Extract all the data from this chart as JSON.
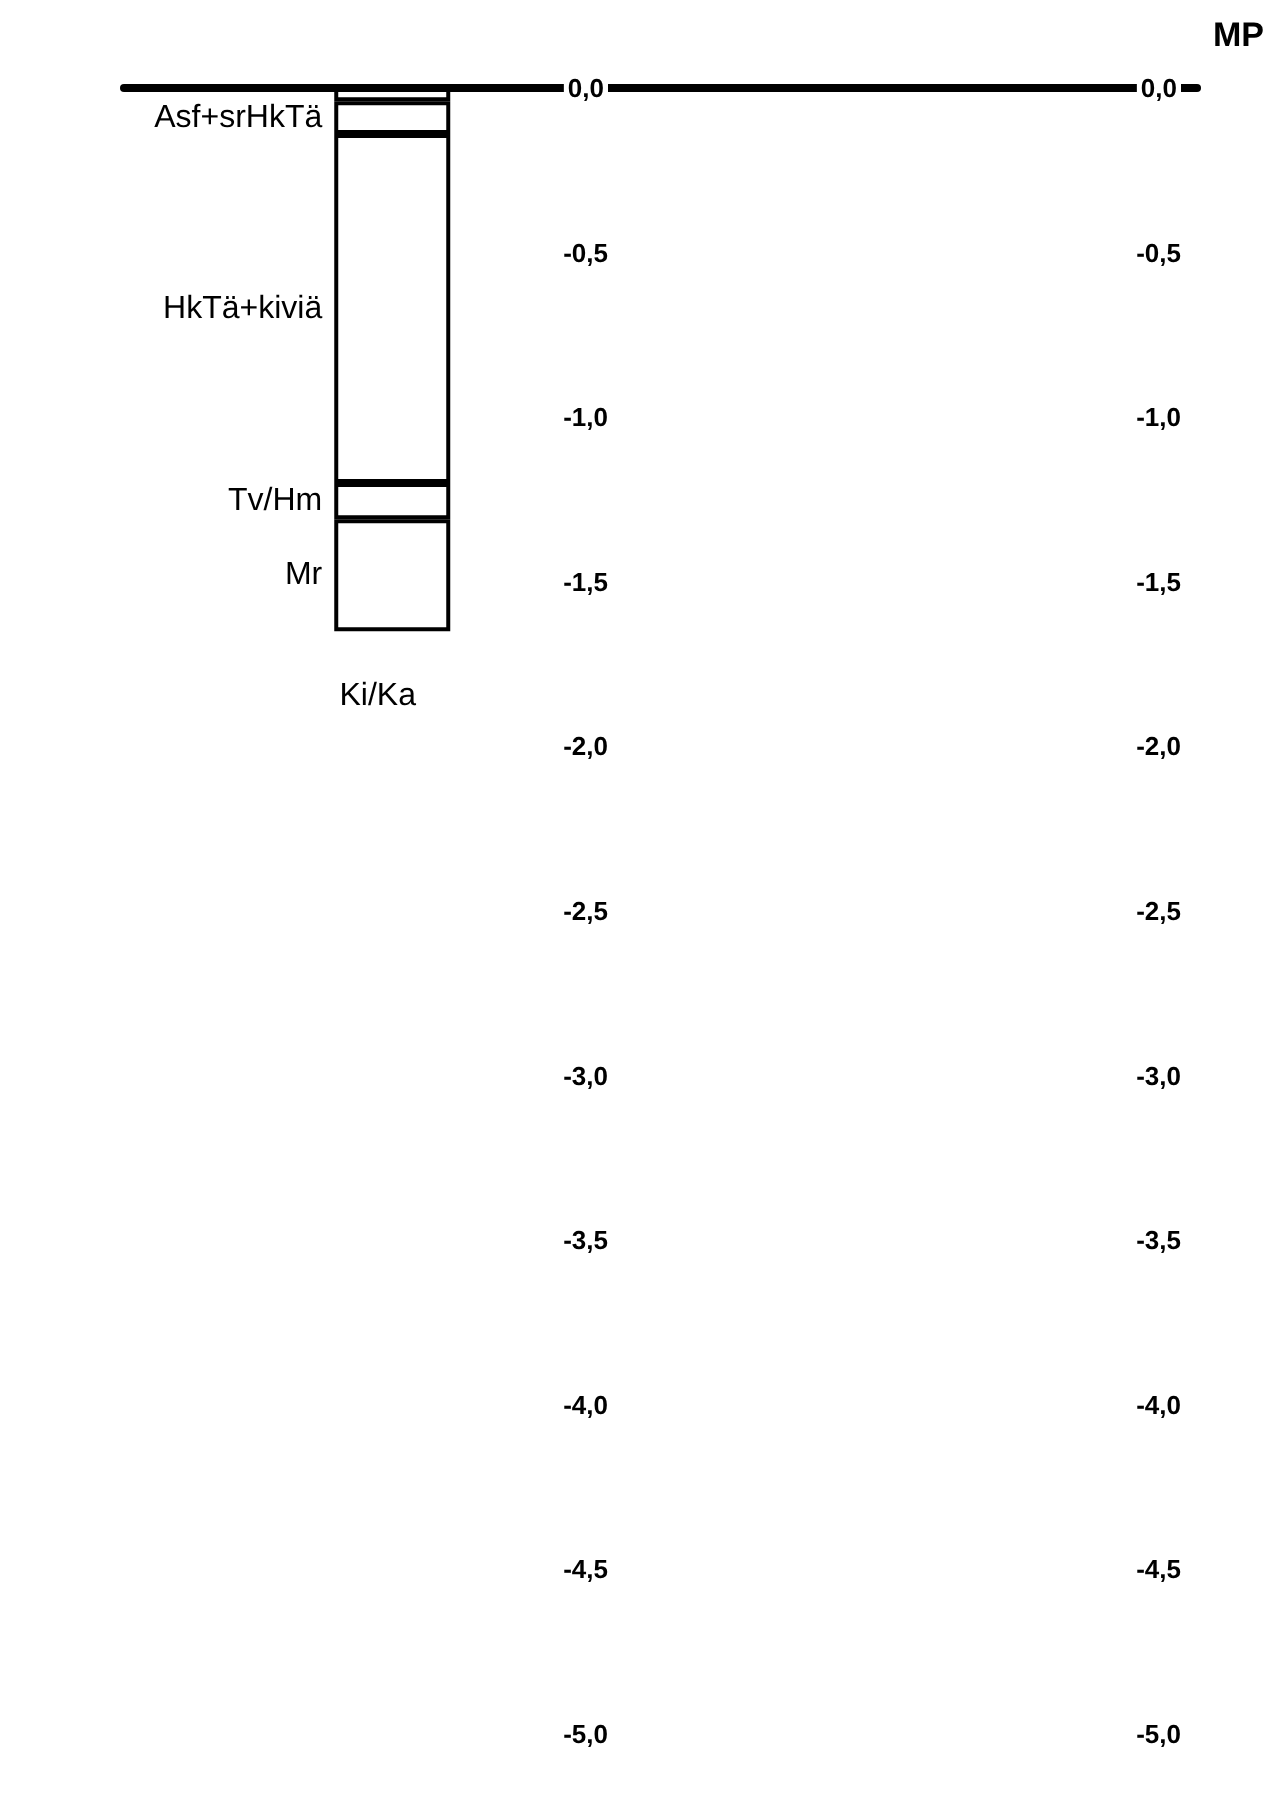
{
  "chart_data": {
    "type": "bar",
    "stacked": true,
    "categories": [
      null,
      null,
      null,
      null,
      null,
      null
    ],
    "series": [
      {
        "color": "#ffffff",
        "values": [
          null,
          -0.04,
          null,
          null,
          null,
          null
        ]
      },
      {
        "name": "Asf+srHkTä",
        "color": "#ffffff",
        "values": [
          null,
          -0.1,
          null,
          null,
          null,
          null
        ]
      },
      {
        "name": "HkTä+kiviä",
        "color": "#ffffff",
        "values": [
          null,
          -1.06,
          null,
          null,
          null,
          null
        ]
      },
      {
        "name": "Tv/Hm",
        "color": "#ffffff",
        "values": [
          null,
          -0.11,
          null,
          null,
          null,
          null
        ]
      },
      {
        "name": "Mr",
        "color": "#ffffff",
        "values": [
          null,
          -0.34,
          null,
          null,
          null,
          null
        ]
      }
    ],
    "ylim": [
      -5,
      0
    ],
    "yticks": [
      {
        "value": 0,
        "label": "0,0"
      },
      {
        "value": -0.5,
        "label": "-0,5"
      },
      {
        "value": -1,
        "label": "-1,0"
      },
      {
        "value": -1.5,
        "label": "-1,5"
      },
      {
        "value": -2,
        "label": "-2,0"
      },
      {
        "value": -2.5,
        "label": "-2,5"
      },
      {
        "value": -3,
        "label": "-3,0"
      },
      {
        "value": -3.5,
        "label": "-3,5"
      },
      {
        "value": -4,
        "label": "-4,0"
      },
      {
        "value": -4.5,
        "label": "-4,5"
      },
      {
        "value": -5,
        "label": "-5,0"
      }
    ],
    "y2lim": [
      -5,
      0
    ],
    "y2ticks": [
      {
        "value": 0,
        "label": "0,0"
      },
      {
        "value": -0.5,
        "label": "-0,5"
      },
      {
        "value": -1,
        "label": "-1,0"
      },
      {
        "value": -1.5,
        "label": "-1,5"
      },
      {
        "value": -2,
        "label": "-2,0"
      },
      {
        "value": -2.5,
        "label": "-2,5"
      },
      {
        "value": -3,
        "label": "-3,0"
      },
      {
        "value": -3.5,
        "label": "-3,5"
      },
      {
        "value": -4,
        "label": "-4,0"
      },
      {
        "value": -4.5,
        "label": "-4,5"
      },
      {
        "value": -5,
        "label": "-5,0"
      }
    ],
    "y2label": "MP",
    "annotations": [
      "Ki/Ka"
    ],
    "grid": false
  }
}
